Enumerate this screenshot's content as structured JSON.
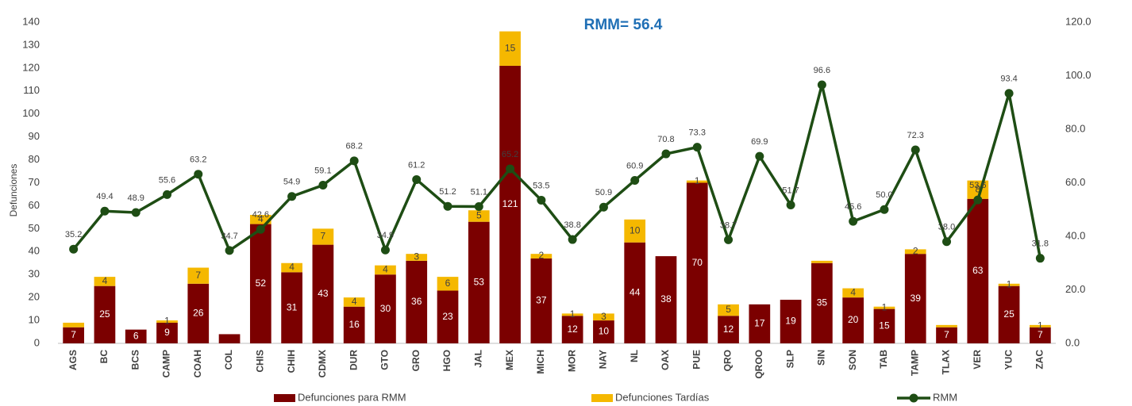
{
  "chart_data": {
    "type": "bar_line",
    "title": "RMM= 56.4",
    "y_label": "Defunciones",
    "categories": [
      "AGS",
      "BC",
      "BCS",
      "CAMP",
      "COAH",
      "COL",
      "CHIS",
      "CHIH",
      "CDMX",
      "DUR",
      "GTO",
      "GRO",
      "HGO",
      "JAL",
      "MEX",
      "MICH",
      "MOR",
      "NAY",
      "NL",
      "OAX",
      "PUE",
      "QRO",
      "QROO",
      "SLP",
      "SIN",
      "SON",
      "TAB",
      "TAMP",
      "TLAX",
      "VER",
      "YUC",
      "ZAC"
    ],
    "ylim": [
      0,
      140
    ],
    "yticks": [
      0,
      10,
      20,
      30,
      40,
      50,
      60,
      70,
      80,
      90,
      100,
      110,
      120,
      130,
      140
    ],
    "y2lim": [
      0,
      120
    ],
    "y2ticks": [
      {
        "value": 0,
        "label": "0.0"
      },
      {
        "value": 20,
        "label": "20.0"
      },
      {
        "value": 40,
        "label": "40.0"
      },
      {
        "value": 60,
        "label": "60.0"
      },
      {
        "value": 80,
        "label": "80.0"
      },
      {
        "value": 100,
        "label": "100.0"
      },
      {
        "value": 120,
        "label": "120.0"
      }
    ],
    "series": [
      {
        "name": "Defunciones para RMM",
        "kind": "bar",
        "color": "#7b0000",
        "values": [
          7,
          25,
          6,
          9,
          26,
          4,
          52,
          31,
          43,
          16,
          30,
          36,
          23,
          53,
          121,
          37,
          12,
          10,
          44,
          38,
          70,
          12,
          17,
          19,
          35,
          20,
          15,
          39,
          7,
          63,
          25,
          7
        ],
        "value_labels": [
          "7",
          "25",
          "6",
          "9",
          "26",
          null,
          "52",
          "31",
          "43",
          "16",
          "30",
          "36",
          "23",
          "53",
          "121",
          "37",
          "12",
          "10",
          "44",
          "38",
          "70",
          "12",
          "17",
          "19",
          "35",
          "20",
          "15",
          "39",
          "7",
          "63",
          "25",
          "7"
        ]
      },
      {
        "name": "Defunciones Tardías",
        "kind": "bar",
        "color": "#f5b800",
        "values": [
          2,
          4,
          0,
          1,
          7,
          0,
          4,
          4,
          7,
          4,
          4,
          3,
          6,
          5,
          15,
          2,
          1,
          3,
          10,
          0,
          1,
          5,
          0,
          0,
          1,
          4,
          1,
          2,
          1,
          8,
          1,
          1
        ],
        "value_labels": [
          null,
          "4",
          null,
          "1",
          "7",
          null,
          "4",
          "4",
          "7",
          "4",
          "4",
          "3",
          "6",
          "5",
          "15",
          "2",
          "1",
          "3",
          "10",
          null,
          "1",
          "5",
          null,
          null,
          null,
          "4",
          "1",
          "2",
          null,
          "8",
          "1",
          "1"
        ]
      },
      {
        "name": "RMM",
        "kind": "line",
        "axis": "y2",
        "color": "#1e4d14",
        "values": [
          35.2,
          49.4,
          48.9,
          55.6,
          63.2,
          34.7,
          42.6,
          54.9,
          59.1,
          68.2,
          34.9,
          61.2,
          51.2,
          51.1,
          65.2,
          53.5,
          38.8,
          50.9,
          60.9,
          70.8,
          73.3,
          38.7,
          69.9,
          51.7,
          96.6,
          45.6,
          50.0,
          72.3,
          38.0,
          53.6,
          93.4,
          31.8
        ],
        "value_labels": [
          "35.2",
          "49.4",
          "48.9",
          "55.6",
          "63.2",
          "34.7",
          "42.6",
          "54.9",
          "59.1",
          "68.2",
          "34.9",
          "61.2",
          "51.2",
          "51.1",
          "65.2",
          "53.5",
          "38.8",
          "50.9",
          "60.9",
          "70.8",
          "73.3",
          "38.7",
          "69.9",
          "51.7",
          "96.6",
          "45.6",
          "50.0",
          "72.3",
          "38.0",
          "53.6",
          "93.4",
          "31.8"
        ]
      }
    ]
  }
}
